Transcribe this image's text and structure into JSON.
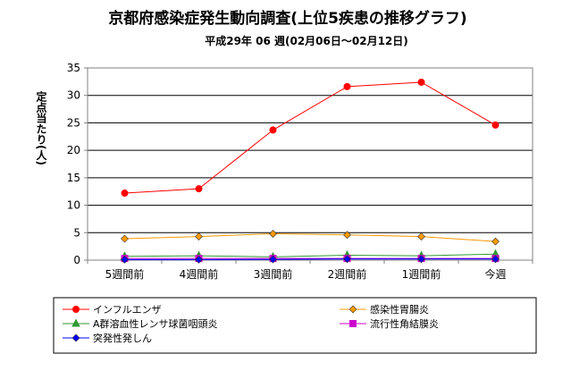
{
  "chart_data": {
    "type": "line",
    "title": "京都府感染症発生動向調査(上位5疾患の推移グラフ)",
    "subtitle": "平成29年 06 週(02月06日～02月12日)",
    "ylabel": "定点当たり(人)",
    "xlabel": "",
    "ylim": [
      0,
      35
    ],
    "yticks": [
      "0",
      "5",
      "10",
      "15",
      "20",
      "25",
      "30",
      "35"
    ],
    "categories": [
      "5週間前",
      "4週間前",
      "3週間前",
      "2週間前",
      "1週間前",
      "今週"
    ],
    "grid": true,
    "legend_position": "bottom",
    "series": [
      {
        "name": "インフルエンザ",
        "color": "#ff0000",
        "marker": "circle",
        "values": [
          12.2,
          13.0,
          23.7,
          31.6,
          32.4,
          24.6
        ]
      },
      {
        "name": "感染性胃腸炎",
        "color": "#ff9900",
        "marker": "diamond",
        "values": [
          3.9,
          4.3,
          4.8,
          4.6,
          4.3,
          3.4
        ]
      },
      {
        "name": "A群溶血性レンサ球菌咽頭炎",
        "color": "#339933",
        "marker": "triangle",
        "values": [
          0.7,
          0.8,
          0.6,
          0.9,
          0.8,
          1.1
        ]
      },
      {
        "name": "流行性角結膜炎",
        "color": "#cc00cc",
        "marker": "square",
        "values": [
          0.3,
          0.3,
          0.3,
          0.3,
          0.3,
          0.3
        ]
      },
      {
        "name": "突発性発しん",
        "color": "#0000ff",
        "marker": "diamond",
        "values": [
          0.1,
          0.1,
          0.15,
          0.2,
          0.2,
          0.2
        ]
      }
    ]
  }
}
